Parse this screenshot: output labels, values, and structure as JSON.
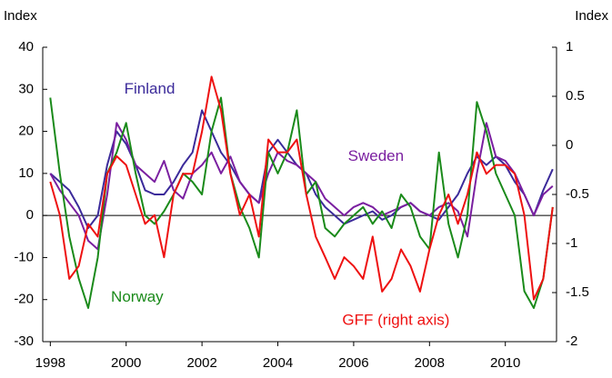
{
  "chart_data": {
    "type": "line",
    "y_label": "Index",
    "y2_label": "Index",
    "x": [
      1998,
      1998.25,
      1998.5,
      1998.75,
      1999,
      1999.25,
      1999.5,
      1999.75,
      2000,
      2000.25,
      2000.5,
      2000.75,
      2001,
      2001.25,
      2001.5,
      2001.75,
      2002,
      2002.25,
      2002.5,
      2002.75,
      2003,
      2003.25,
      2003.5,
      2003.75,
      2004,
      2004.25,
      2004.5,
      2004.75,
      2005,
      2005.25,
      2005.5,
      2005.75,
      2006,
      2006.25,
      2006.5,
      2006.75,
      2007,
      2007.25,
      2007.5,
      2007.75,
      2008,
      2008.25,
      2008.5,
      2008.75,
      2009,
      2009.25,
      2009.5,
      2009.75,
      2010,
      2010.25,
      2010.5,
      2010.75,
      2011,
      2011.25
    ],
    "xlim": [
      1997.8,
      2011.35
    ],
    "xticks": [
      1998,
      2000,
      2002,
      2004,
      2006,
      2008,
      2010
    ],
    "ylim": [
      -30,
      40
    ],
    "yticks": [
      -30,
      -20,
      -10,
      0,
      10,
      20,
      30,
      40
    ],
    "y2lim": [
      -2,
      1
    ],
    "y2ticks": [
      -2,
      -1.5,
      -1,
      -0.5,
      0,
      0.5,
      1
    ],
    "series": [
      {
        "name": "Finland",
        "color": "#3b2a9a",
        "values": [
          10,
          8,
          6,
          2,
          -3,
          0,
          12,
          20,
          17,
          12,
          6,
          5,
          5,
          8,
          12,
          15,
          25,
          20,
          15,
          12,
          8,
          5,
          3,
          15,
          18,
          15,
          12,
          10,
          5,
          2,
          0,
          -2,
          -1,
          0,
          1,
          -1,
          0,
          2,
          3,
          1,
          0,
          -1,
          2,
          5,
          10,
          14,
          12,
          14,
          12,
          8,
          5,
          0,
          6,
          11
        ]
      },
      {
        "name": "Sweden",
        "color": "#7a1fa0",
        "values": [
          10,
          6,
          3,
          0,
          -6,
          -8,
          5,
          22,
          18,
          12,
          10,
          8,
          13,
          6,
          4,
          10,
          12,
          15,
          10,
          14,
          8,
          5,
          3,
          10,
          15,
          13,
          12,
          10,
          8,
          4,
          2,
          0,
          2,
          3,
          2,
          0,
          1,
          2,
          3,
          1,
          0,
          2,
          3,
          1,
          -5,
          10,
          22,
          14,
          13,
          10,
          5,
          0,
          5,
          7
        ]
      },
      {
        "name": "Norway",
        "color": "#1a8a1a",
        "values": [
          28,
          10,
          -5,
          -15,
          -22,
          -10,
          10,
          15,
          22,
          10,
          0,
          -2,
          1,
          5,
          10,
          8,
          5,
          20,
          28,
          10,
          2,
          -3,
          -10,
          15,
          10,
          15,
          25,
          5,
          8,
          -3,
          -5,
          -2,
          0,
          2,
          -2,
          1,
          -3,
          5,
          2,
          -5,
          -8,
          15,
          -2,
          -10,
          0,
          27,
          20,
          10,
          5,
          0,
          -18,
          -22,
          -15,
          2
        ]
      },
      {
        "name": "GFF (right axis)",
        "color": "#ee1111",
        "axis": "y2",
        "values": [
          -0.37,
          -0.71,
          -1.36,
          -1.23,
          -0.8,
          -0.93,
          -0.29,
          -0.11,
          -0.2,
          -0.5,
          -0.8,
          -0.71,
          -1.14,
          -0.5,
          -0.29,
          -0.29,
          0.14,
          0.7,
          0.36,
          -0.29,
          -0.71,
          -0.5,
          -0.93,
          0.06,
          -0.07,
          -0.07,
          0.06,
          -0.5,
          -0.93,
          -1.14,
          -1.36,
          -1.14,
          -1.23,
          -1.36,
          -0.93,
          -1.49,
          -1.36,
          -1.06,
          -1.23,
          -1.49,
          -1.06,
          -0.71,
          -0.5,
          -0.8,
          -0.5,
          -0.07,
          -0.29,
          -0.2,
          -0.2,
          -0.29,
          -0.71,
          -1.57,
          -1.36,
          -0.63
        ]
      }
    ],
    "annotations": [
      {
        "text": "Finland",
        "x": 1999.95,
        "y": 30,
        "color": "#3b2a9a"
      },
      {
        "text": "Sweden",
        "x": 2005.85,
        "y": 14,
        "color": "#7a1fa0"
      },
      {
        "text": "Norway",
        "x": 1999.6,
        "y": -19.5,
        "color": "#1a8a1a"
      },
      {
        "text": "GFF (right axis)",
        "x": 2005.7,
        "y": -25,
        "color": "#ee1111"
      }
    ]
  }
}
